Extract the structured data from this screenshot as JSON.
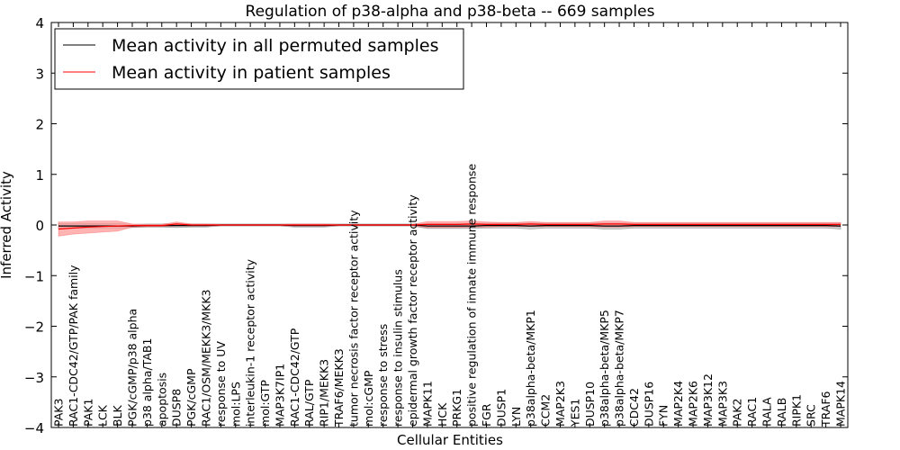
{
  "chart_data": {
    "type": "line",
    "title": "Regulation of p38-alpha and p38-beta -- 669 samples",
    "xlabel": "Cellular Entities",
    "ylabel": "Inferred Activity",
    "ylim": [
      -4,
      4
    ],
    "yticks": [
      "4",
      "3",
      "2",
      "1",
      "0",
      "−1",
      "−2",
      "−3",
      "−4"
    ],
    "legend_position": "top-left",
    "grid": false,
    "categories": [
      "PAK3",
      "RAC1-CDC42/GTP/PAK family",
      "PAK1",
      "LCK",
      "BLK",
      "PGK/cGMP/p38 alpha",
      "p38 alpha/TAB1",
      "apoptosis",
      "DUSP8",
      "PGK/cGMP",
      "RAC1/OSM/MEKK3/MKK3",
      "response to UV",
      "mol:LPS",
      "interleukin-1 receptor activity",
      "mol:GTP",
      "MAP3K7IP1",
      "RAC1-CDC42/GTP",
      "RAL/GTP",
      "RIP1/MEKK3",
      "TRAF6/MEKK3",
      "tumor necrosis factor receptor activity",
      "mol:cGMP",
      "response to stress",
      "response to insulin stimulus",
      "epidermal growth factor receptor activity",
      "MAPK11",
      "HCK",
      "PRKG1",
      "positive regulation of innate immune response",
      "FGR",
      "DUSP1",
      "LYN",
      "p38alpha-beta/MKP1",
      "CCM2",
      "MAP2K3",
      "YES1",
      "DUSP10",
      "p38alpha-beta/MKP5",
      "p38alpha-beta/MKP7",
      "CDC42",
      "DUSP16",
      "FYN",
      "MAP2K4",
      "MAP2K6",
      "MAP3K12",
      "MAP3K3",
      "PAK2",
      "RAC1",
      "RALA",
      "RALB",
      "RIPK1",
      "SRC",
      "TRAF6",
      "MAPK14"
    ],
    "series": [
      {
        "name": "Mean activity in all permuted samples",
        "color": "#000000",
        "band_color": "#bbbbbb",
        "values": [
          -0.02,
          -0.02,
          -0.02,
          -0.02,
          -0.02,
          -0.02,
          -0.01,
          -0.01,
          -0.01,
          -0.01,
          -0.01,
          0,
          0,
          0,
          0,
          0,
          -0.01,
          -0.01,
          -0.01,
          0,
          0,
          0,
          0,
          0,
          0,
          -0.02,
          -0.02,
          -0.02,
          -0.02,
          -0.01,
          -0.01,
          -0.01,
          -0.02,
          -0.01,
          -0.01,
          -0.01,
          -0.01,
          -0.02,
          -0.02,
          -0.01,
          -0.01,
          -0.01,
          -0.01,
          -0.01,
          -0.01,
          -0.01,
          -0.01,
          -0.01,
          -0.01,
          -0.01,
          -0.01,
          -0.01,
          -0.01,
          -0.02
        ],
        "band": [
          0.05,
          0.05,
          0.05,
          0.05,
          0.05,
          0.03,
          0.03,
          0.03,
          0.04,
          0.03,
          0.03,
          0.02,
          0.02,
          0.02,
          0.02,
          0.02,
          0.03,
          0.03,
          0.03,
          0.02,
          0.02,
          0.02,
          0.02,
          0.02,
          0.02,
          0.05,
          0.05,
          0.05,
          0.05,
          0.05,
          0.05,
          0.05,
          0.06,
          0.05,
          0.05,
          0.05,
          0.05,
          0.06,
          0.06,
          0.05,
          0.05,
          0.05,
          0.05,
          0.05,
          0.05,
          0.05,
          0.05,
          0.05,
          0.05,
          0.05,
          0.05,
          0.05,
          0.05,
          0.06
        ]
      },
      {
        "name": "Mean activity in patient samples",
        "color": "#ff0000",
        "band_color": "#ff9999",
        "values": [
          -0.08,
          -0.06,
          -0.04,
          -0.03,
          -0.02,
          -0.01,
          -0.01,
          -0.01,
          0.02,
          0,
          0,
          0,
          0,
          0,
          0,
          0,
          0,
          0,
          0,
          0,
          0,
          0,
          0,
          0,
          0,
          0.01,
          0.01,
          0.01,
          0.02,
          0.01,
          0.01,
          0.01,
          0.02,
          0.01,
          0.01,
          0.01,
          0.01,
          0.02,
          0.02,
          0.01,
          0.01,
          0.01,
          0.01,
          0.01,
          0.01,
          0.01,
          0.01,
          0.01,
          0.01,
          0.01,
          0.01,
          0.01,
          0.01,
          0.01
        ],
        "band": [
          0.14,
          0.12,
          0.12,
          0.11,
          0.1,
          0.03,
          0.02,
          0.02,
          0.04,
          0.02,
          0.02,
          0.01,
          0.01,
          0.01,
          0.01,
          0.01,
          0.02,
          0.02,
          0.02,
          0.01,
          0.01,
          0.01,
          0.01,
          0.01,
          0.01,
          0.06,
          0.06,
          0.06,
          0.06,
          0.05,
          0.04,
          0.04,
          0.05,
          0.04,
          0.04,
          0.04,
          0.04,
          0.06,
          0.06,
          0.04,
          0.04,
          0.04,
          0.04,
          0.04,
          0.04,
          0.04,
          0.04,
          0.04,
          0.04,
          0.04,
          0.04,
          0.04,
          0.04,
          0.04
        ]
      }
    ]
  }
}
